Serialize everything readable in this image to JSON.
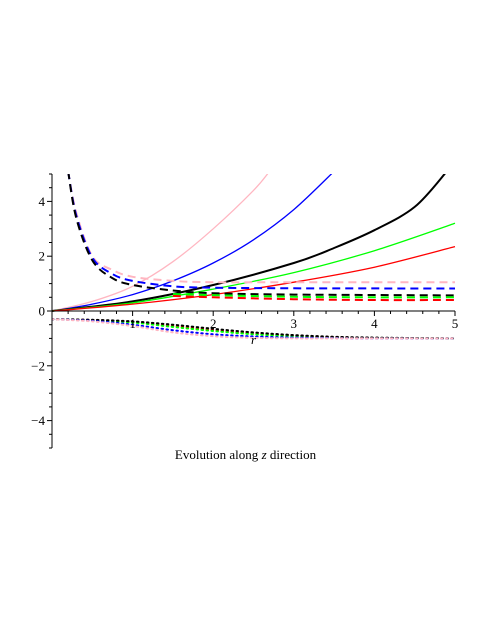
{
  "caption": {
    "before": "Evolution along ",
    "var": "z",
    "after": " direction"
  },
  "chart_data": {
    "type": "line",
    "xlabel": "r",
    "ylabel": "",
    "xlim": [
      0,
      5
    ],
    "ylim": [
      -5,
      5
    ],
    "x_ticks": [
      1,
      2,
      3,
      4,
      5
    ],
    "y_ticks": [
      -4,
      -2,
      0,
      2,
      4
    ],
    "grid": false,
    "legend": "none",
    "series": [
      {
        "color": "#ffb6c1",
        "style": "solid",
        "x": [
          0,
          0.5,
          1,
          1.5,
          2,
          2.5,
          2.7
        ],
        "y": [
          0,
          0.35,
          0.9,
          1.8,
          3.0,
          4.4,
          5.1
        ]
      },
      {
        "color": "#0000ff",
        "style": "solid",
        "x": [
          0,
          0.5,
          1,
          1.5,
          2,
          2.5,
          3,
          3.5
        ],
        "y": [
          0,
          0.25,
          0.6,
          1.1,
          1.75,
          2.6,
          3.7,
          5.1
        ]
      },
      {
        "color": "#000000",
        "style": "solid",
        "x": [
          0,
          1,
          2,
          3,
          3.5,
          4,
          4.5,
          4.9
        ],
        "y": [
          0,
          0.35,
          0.95,
          1.75,
          2.3,
          2.95,
          3.8,
          5.1
        ]
      },
      {
        "color": "#00ff00",
        "style": "solid",
        "x": [
          0,
          1,
          2,
          3,
          4,
          5
        ],
        "y": [
          0,
          0.3,
          0.8,
          1.4,
          2.2,
          3.2
        ]
      },
      {
        "color": "#ff0000",
        "style": "solid",
        "x": [
          0,
          1,
          2,
          3,
          4,
          5
        ],
        "y": [
          0,
          0.25,
          0.6,
          1.05,
          1.6,
          2.35
        ]
      },
      {
        "color": "#ffb6c1",
        "style": "dashed",
        "x": [
          0.2,
          0.3,
          0.5,
          0.75,
          1,
          1.5,
          2,
          3,
          5
        ],
        "y": [
          5.1,
          3.6,
          2.0,
          1.5,
          1.25,
          1.1,
          1.05,
          1.05,
          1.05
        ]
      },
      {
        "color": "#0000ff",
        "style": "dashed",
        "x": [
          0.2,
          0.3,
          0.5,
          0.75,
          1,
          1.5,
          2,
          3,
          5
        ],
        "y": [
          5.1,
          3.5,
          1.95,
          1.35,
          1.1,
          0.9,
          0.85,
          0.83,
          0.82
        ]
      },
      {
        "color": "#000000",
        "style": "dashed",
        "x": [
          0.2,
          0.3,
          0.5,
          0.75,
          1,
          1.5,
          2,
          3,
          5
        ],
        "y": [
          5.1,
          3.4,
          1.85,
          1.2,
          0.95,
          0.75,
          0.65,
          0.6,
          0.57
        ]
      },
      {
        "color": "#00ff00",
        "style": "dashed",
        "x": [
          1.5,
          2,
          3,
          4,
          5
        ],
        "y": [
          0.62,
          0.58,
          0.52,
          0.5,
          0.5
        ]
      },
      {
        "color": "#ff0000",
        "style": "dashed",
        "x": [
          1.5,
          2,
          3,
          4,
          5
        ],
        "y": [
          0.55,
          0.5,
          0.43,
          0.4,
          0.4
        ]
      },
      {
        "color": "#ff0000",
        "style": "dotted",
        "x": [
          0,
          0.5,
          1,
          1.5,
          2,
          2.5,
          3,
          3.5,
          4,
          5
        ],
        "y": [
          -0.3,
          -0.33,
          -0.4,
          -0.55,
          -0.7,
          -0.82,
          -0.9,
          -0.95,
          -0.98,
          -1.0
        ]
      },
      {
        "color": "#00ff00",
        "style": "dotted",
        "x": [
          0,
          0.5,
          1,
          1.5,
          2,
          2.5,
          3,
          3.5,
          4,
          5
        ],
        "y": [
          -0.3,
          -0.34,
          -0.42,
          -0.58,
          -0.73,
          -0.85,
          -0.92,
          -0.96,
          -0.98,
          -1.0
        ]
      },
      {
        "color": "#000000",
        "style": "dotted",
        "x": [
          0,
          0.5,
          1,
          1.5,
          2,
          2.5,
          3,
          3.5,
          4,
          5
        ],
        "y": [
          -0.3,
          -0.32,
          -0.38,
          -0.5,
          -0.65,
          -0.78,
          -0.88,
          -0.94,
          -0.97,
          -1.0
        ]
      },
      {
        "color": "#0000ff",
        "style": "dotted",
        "x": [
          0,
          0.5,
          1,
          1.5,
          2,
          2.5,
          3,
          3.5,
          4,
          5
        ],
        "y": [
          -0.3,
          -0.36,
          -0.5,
          -0.7,
          -0.85,
          -0.93,
          -0.97,
          -0.99,
          -1.0,
          -1.0
        ]
      },
      {
        "color": "#ffb6c1",
        "style": "dotted",
        "x": [
          0,
          0.5,
          1,
          1.5,
          2,
          2.5,
          3,
          3.5,
          4,
          5
        ],
        "y": [
          -0.3,
          -0.38,
          -0.55,
          -0.78,
          -0.92,
          -0.98,
          -1.0,
          -1.0,
          -1.0,
          -1.0
        ]
      }
    ]
  }
}
